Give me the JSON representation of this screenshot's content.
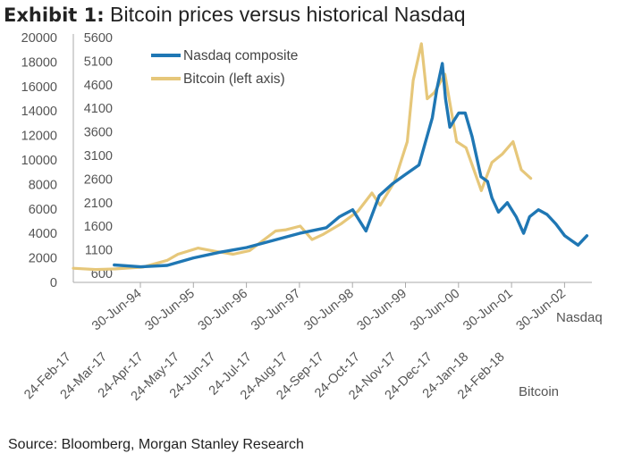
{
  "title": {
    "bold": "Exhibit 1:",
    "rest": "Bitcoin prices versus historical Nasdaq"
  },
  "source": "Source: Bloomberg, Morgan Stanley Research",
  "colors": {
    "nasdaq": "#1f77b4",
    "bitcoin": "#e6c77a",
    "axis": "#aaaaaa"
  },
  "chart_data": {
    "type": "line",
    "legend": {
      "placement": "top-left"
    },
    "grid": false,
    "left_axis_bitcoin": {
      "ticks": [
        "20000",
        "18000",
        "16000",
        "14000",
        "12000",
        "10000",
        "8000",
        "6000",
        "4000",
        "2000",
        "0"
      ],
      "ylim": [
        0,
        20000
      ]
    },
    "left_axis_nasdaq": {
      "ticks": [
        "5600",
        "5100",
        "4600",
        "4100",
        "3600",
        "3100",
        "2600",
        "2100",
        "1600",
        "1100",
        "600"
      ],
      "ylim": [
        600,
        5600
      ]
    },
    "x_axis_nasdaq": {
      "label": "Nasdaq",
      "ticks": [
        "30-Jun-94",
        "30-Jun-95",
        "30-Jun-96",
        "30-Jun-97",
        "30-Jun-98",
        "30-Jun-99",
        "30-Jun-00",
        "30-Jun-01",
        "30-Jun-02"
      ]
    },
    "x_axis_bitcoin": {
      "label": "Bitcoin",
      "ticks": [
        "24-Feb-17",
        "24-Mar-17",
        "24-Apr-17",
        "24-May-17",
        "24-Jun-17",
        "24-Jul-17",
        "24-Aug-17",
        "24-Sep-17",
        "24-Oct-17",
        "24-Nov-17",
        "24-Dec-17",
        "24-Jan-18",
        "24-Feb-18"
      ]
    },
    "series": [
      {
        "name": "Nasdaq composite",
        "axis": "nasdaq",
        "x": [
          "1994-01-01",
          "1994-07-01",
          "1995-01-01",
          "1995-07-01",
          "1996-01-01",
          "1996-07-01",
          "1997-01-01",
          "1997-07-01",
          "1998-01-01",
          "1998-04-01",
          "1998-07-01",
          "1998-10-01",
          "1999-01-01",
          "1999-04-01",
          "1999-07-01",
          "1999-10-01",
          "2000-01-01",
          "2000-02-01",
          "2000-03-10",
          "2000-04-01",
          "2000-05-01",
          "2000-07-01",
          "2000-08-15",
          "2000-10-01",
          "2000-12-01",
          "2001-01-15",
          "2001-02-15",
          "2001-04-01",
          "2001-06-01",
          "2001-08-01",
          "2001-09-21",
          "2001-11-01",
          "2002-01-01",
          "2002-03-01",
          "2002-05-01",
          "2002-07-01",
          "2002-08-15",
          "2002-10-01",
          "2002-12-01"
        ],
        "y": [
          780,
          740,
          770,
          930,
          1050,
          1150,
          1300,
          1450,
          1570,
          1800,
          1950,
          1500,
          2250,
          2500,
          2700,
          2900,
          3900,
          4500,
          5050,
          4300,
          3700,
          4000,
          4000,
          3500,
          2650,
          2550,
          2200,
          1900,
          2100,
          1800,
          1450,
          1800,
          1950,
          1850,
          1650,
          1400,
          1300,
          1200,
          1400
        ]
      },
      {
        "name": "Bitcoin (left axis)",
        "axis": "bitcoin",
        "x": [
          "2017-02-24",
          "2017-03-15",
          "2017-04-01",
          "2017-04-24",
          "2017-05-15",
          "2017-05-24",
          "2017-06-10",
          "2017-06-24",
          "2017-07-10",
          "2017-07-24",
          "2017-08-15",
          "2017-08-24",
          "2017-09-05",
          "2017-09-15",
          "2017-09-24",
          "2017-10-10",
          "2017-10-24",
          "2017-11-05",
          "2017-11-12",
          "2017-11-24",
          "2017-12-05",
          "2017-12-10",
          "2017-12-17",
          "2017-12-22",
          "2017-12-28",
          "2018-01-06",
          "2018-01-16",
          "2018-01-24",
          "2018-02-06",
          "2018-02-15",
          "2018-02-24",
          "2018-03-05",
          "2018-03-12",
          "2018-03-20"
        ],
        "y": [
          1150,
          1050,
          1100,
          1250,
          1800,
          2300,
          2800,
          2550,
          2300,
          2600,
          4200,
          4300,
          4600,
          3500,
          3900,
          4800,
          5800,
          7300,
          6300,
          8200,
          11500,
          16500,
          19500,
          15000,
          15500,
          17000,
          11500,
          11000,
          7500,
          9800,
          10500,
          11500,
          9200,
          8500
        ]
      }
    ]
  }
}
